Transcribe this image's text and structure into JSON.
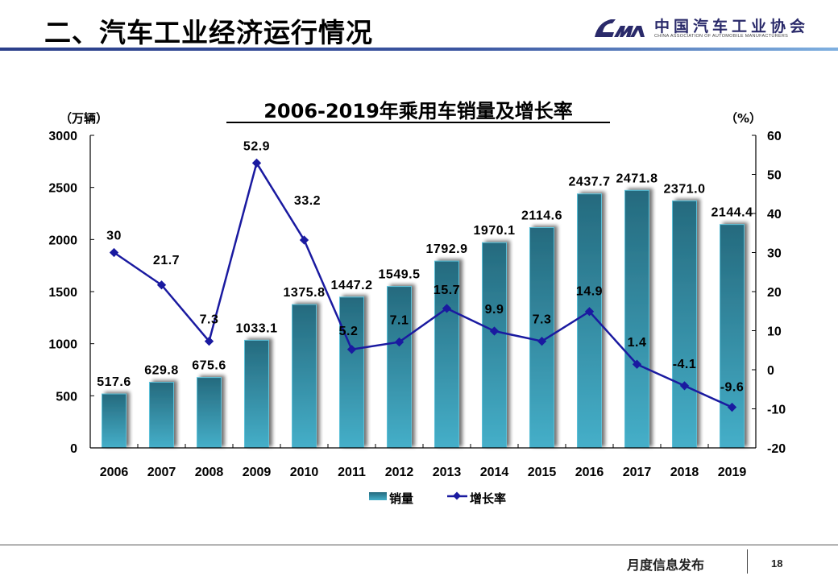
{
  "header": {
    "title": "二、汽车工业经济运行情况",
    "logo_cn": "中国汽车工业协会",
    "logo_en": "CHINA ASSOCIATION OF AUTOMOBILE MANUFACTURERS",
    "logo_icon": "caam-logo-icon"
  },
  "footer": {
    "label": "月度信息发布",
    "page_number": "18"
  },
  "colors": {
    "bar_top": "#256a7e",
    "bar_bottom": "#45afc9",
    "line": "#1a1aa0",
    "header_rule": "#2b3f8a"
  },
  "chart_data": {
    "type": "bar+line",
    "title": "2006-2019年乘用车销量及增长率",
    "categories": [
      "2006",
      "2007",
      "2008",
      "2009",
      "2010",
      "2011",
      "2012",
      "2013",
      "2014",
      "2015",
      "2016",
      "2017",
      "2018",
      "2019"
    ],
    "series": [
      {
        "name": "销量",
        "type": "bar",
        "axis": "left",
        "values": [
          517.6,
          629.8,
          675.6,
          1033.1,
          1375.8,
          1447.2,
          1549.5,
          1792.9,
          1970.1,
          2114.6,
          2437.7,
          2471.8,
          2371.0,
          2144.4
        ],
        "labels": [
          "517.6",
          "629.8",
          "675.6",
          "1033.1",
          "1375.8",
          "1447.2",
          "1549.5",
          "1792.9",
          "1970.1",
          "2114.6",
          "2437.7",
          "2471.8",
          "2371.0",
          "2144.4"
        ]
      },
      {
        "name": "增长率",
        "type": "line",
        "axis": "right",
        "values": [
          30,
          21.7,
          7.3,
          52.9,
          33.2,
          5.2,
          7.1,
          15.7,
          9.9,
          7.3,
          14.9,
          1.4,
          -4.1,
          -9.6
        ],
        "labels": [
          "30",
          "21.7",
          "7.3",
          "52.9",
          "33.2",
          "5.2",
          "7.1",
          "15.7",
          "9.9",
          "7.3",
          "14.9",
          "1.4",
          "-4.1",
          "-9.6"
        ]
      }
    ],
    "left_axis": {
      "label": "（万辆）",
      "ylim": [
        0,
        3000
      ],
      "ticks": [
        "0",
        "500",
        "1000",
        "1500",
        "2000",
        "2500",
        "3000"
      ],
      "tick_values": [
        0,
        500,
        1000,
        1500,
        2000,
        2500,
        3000
      ]
    },
    "right_axis": {
      "label": "（%）",
      "ylim": [
        -20,
        60
      ],
      "ticks": [
        "-20",
        "-10",
        "0",
        "10",
        "20",
        "30",
        "40",
        "50",
        "60"
      ],
      "tick_values": [
        -20,
        -10,
        0,
        10,
        20,
        30,
        40,
        50,
        60
      ]
    },
    "grid": false,
    "legend": {
      "position": "bottom",
      "items": [
        "销量",
        "增长率"
      ]
    }
  }
}
